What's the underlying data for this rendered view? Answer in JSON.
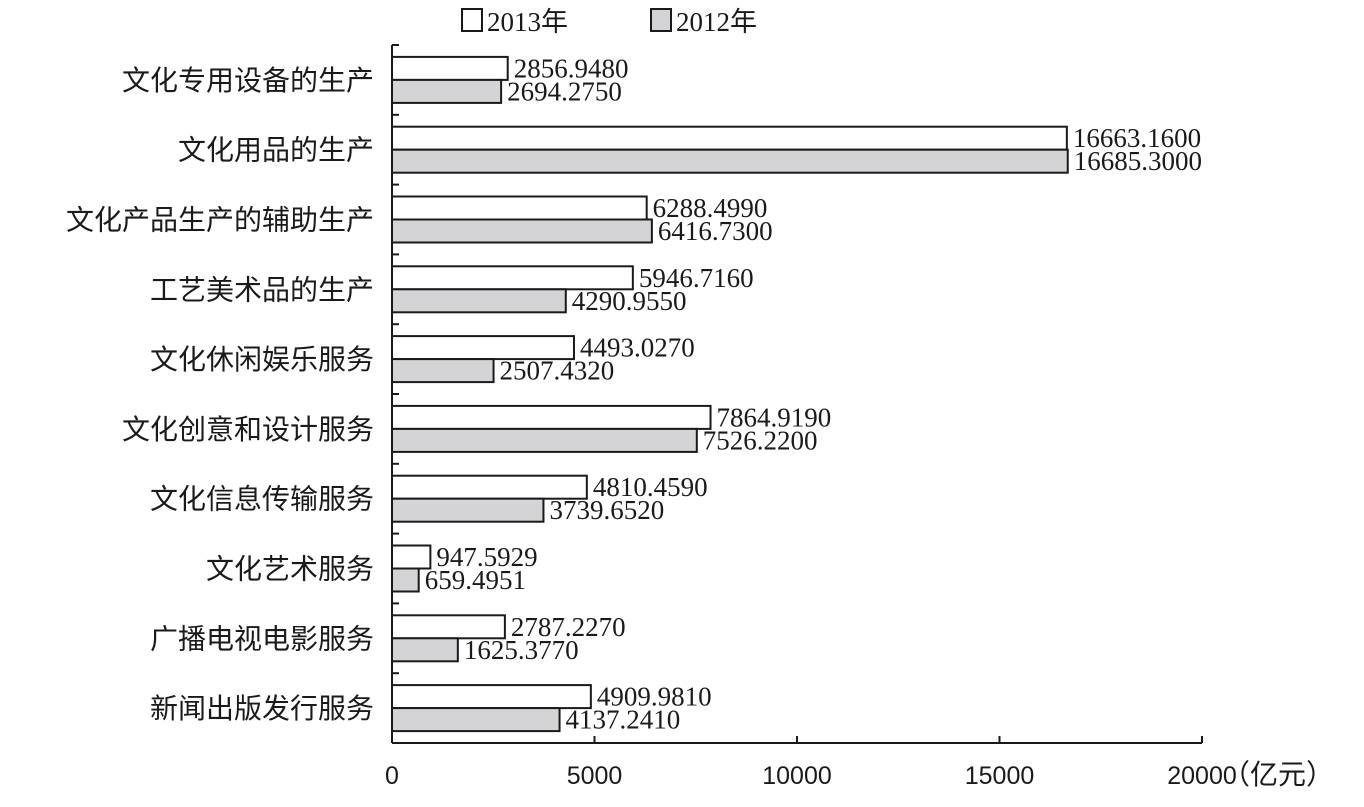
{
  "chart_data": {
    "type": "bar",
    "orientation": "horizontal",
    "categories": [
      "文化专用设备的生产",
      "文化用品的生产",
      "文化产品生产的辅助生产",
      "工艺美术品的生产",
      "文化休闲娱乐服务",
      "文化创意和设计服务",
      "文化信息传输服务",
      "文化艺术服务",
      "广播电视电影服务",
      "新闻出版发行服务"
    ],
    "series": [
      {
        "name": "2013年",
        "color": "#ffffff",
        "values": [
          2856.948,
          16663.16,
          6288.499,
          5946.716,
          4493.027,
          7864.919,
          4810.459,
          947.5929,
          2787.227,
          4909.981
        ],
        "labels": [
          "2856.9480",
          "16663.1600",
          "6288.4990",
          "5946.7160",
          "4493.0270",
          "7864.9190",
          "4810.4590",
          "947.5929",
          "2787.2270",
          "4909.9810"
        ]
      },
      {
        "name": "2012年",
        "color": "#d4d4d6",
        "values": [
          2694.275,
          16685.3,
          6416.73,
          4290.955,
          2507.432,
          7526.22,
          3739.652,
          659.4951,
          1625.377,
          4137.241
        ],
        "labels": [
          "2694.2750",
          "16685.3000",
          "6416.7300",
          "4290.9550",
          "2507.4320",
          "7526.2200",
          "3739.6520",
          "659.4951",
          "1625.3770",
          "4137.2410"
        ]
      }
    ],
    "x_ticks": [
      "0",
      "5000",
      "10000",
      "15000",
      "20000"
    ],
    "xlim": [
      0,
      20000
    ],
    "xlabel": "（亿元）",
    "legend_position": "top",
    "grid": false
  }
}
